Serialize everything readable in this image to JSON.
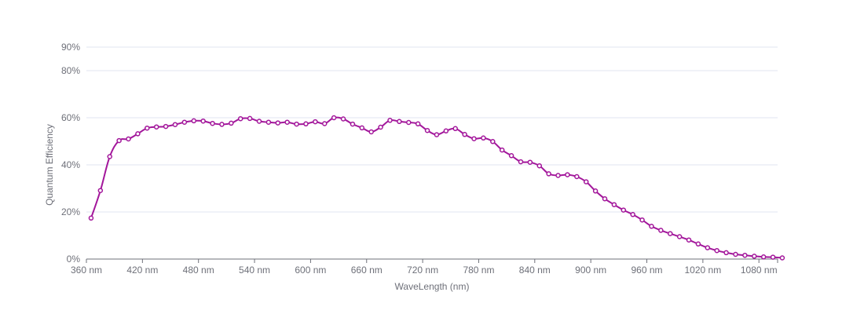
{
  "chart_data": {
    "type": "line",
    "title": "",
    "xlabel": "WaveLength (nm)",
    "ylabel": "Quantum Efficiency",
    "xlim": [
      360,
      1100
    ],
    "ylim": [
      0,
      90
    ],
    "x_ticks": [
      360,
      420,
      480,
      540,
      600,
      660,
      720,
      780,
      840,
      900,
      960,
      1020,
      1080
    ],
    "x_tick_labels": [
      "360 nm",
      "420 nm",
      "480 nm",
      "540 nm",
      "600 nm",
      "660 nm",
      "720 nm",
      "780 nm",
      "840 nm",
      "900 nm",
      "960 nm",
      "1020 nm",
      "1080 nm"
    ],
    "y_ticks": [
      0,
      20,
      40,
      60,
      80,
      90
    ],
    "y_tick_labels": [
      "0%",
      "20%",
      "40%",
      "60%",
      "80%",
      "90%"
    ],
    "grid": true,
    "legend": "none",
    "series_color": "#a3179b",
    "series": [
      {
        "x": [
          365,
          375,
          385,
          395,
          405,
          415,
          425,
          435,
          445,
          455,
          465,
          475,
          485,
          495,
          505,
          515,
          525,
          535,
          545,
          555,
          565,
          575,
          585,
          595,
          605,
          615,
          625,
          635,
          645,
          655,
          665,
          675,
          685,
          695,
          705,
          715,
          725,
          735,
          745,
          755,
          765,
          775,
          785,
          795,
          805,
          815,
          825,
          835,
          845,
          855,
          865,
          875,
          885,
          895,
          905,
          915,
          925,
          935,
          945,
          955,
          965,
          975,
          985,
          995,
          1005,
          1015,
          1025,
          1035,
          1045,
          1055,
          1065,
          1075,
          1085,
          1095,
          1105
        ],
        "values": [
          17.4,
          29.1,
          43.5,
          50.3,
          51.0,
          53.2,
          55.6,
          56.1,
          56.3,
          57.1,
          58.1,
          58.7,
          58.6,
          57.6,
          57.2,
          57.7,
          59.6,
          59.7,
          58.5,
          58.1,
          57.8,
          58.1,
          57.3,
          57.4,
          58.3,
          57.5,
          60.0,
          59.5,
          57.3,
          55.7,
          54.0,
          56.0,
          58.9,
          58.4,
          58.0,
          57.4,
          54.6,
          52.8,
          54.4,
          55.4,
          52.9,
          51.1,
          51.4,
          49.9,
          46.3,
          43.9,
          41.3,
          41.1,
          39.6,
          36.2,
          35.5,
          35.8,
          35.0,
          32.8,
          28.9,
          25.6,
          23.1,
          20.8,
          18.9,
          16.6,
          13.9,
          12.2,
          10.8,
          9.5,
          8.1,
          6.4,
          4.8,
          3.6,
          2.7,
          2.0,
          1.6,
          1.2,
          0.9,
          0.8,
          0.5
        ]
      }
    ]
  }
}
